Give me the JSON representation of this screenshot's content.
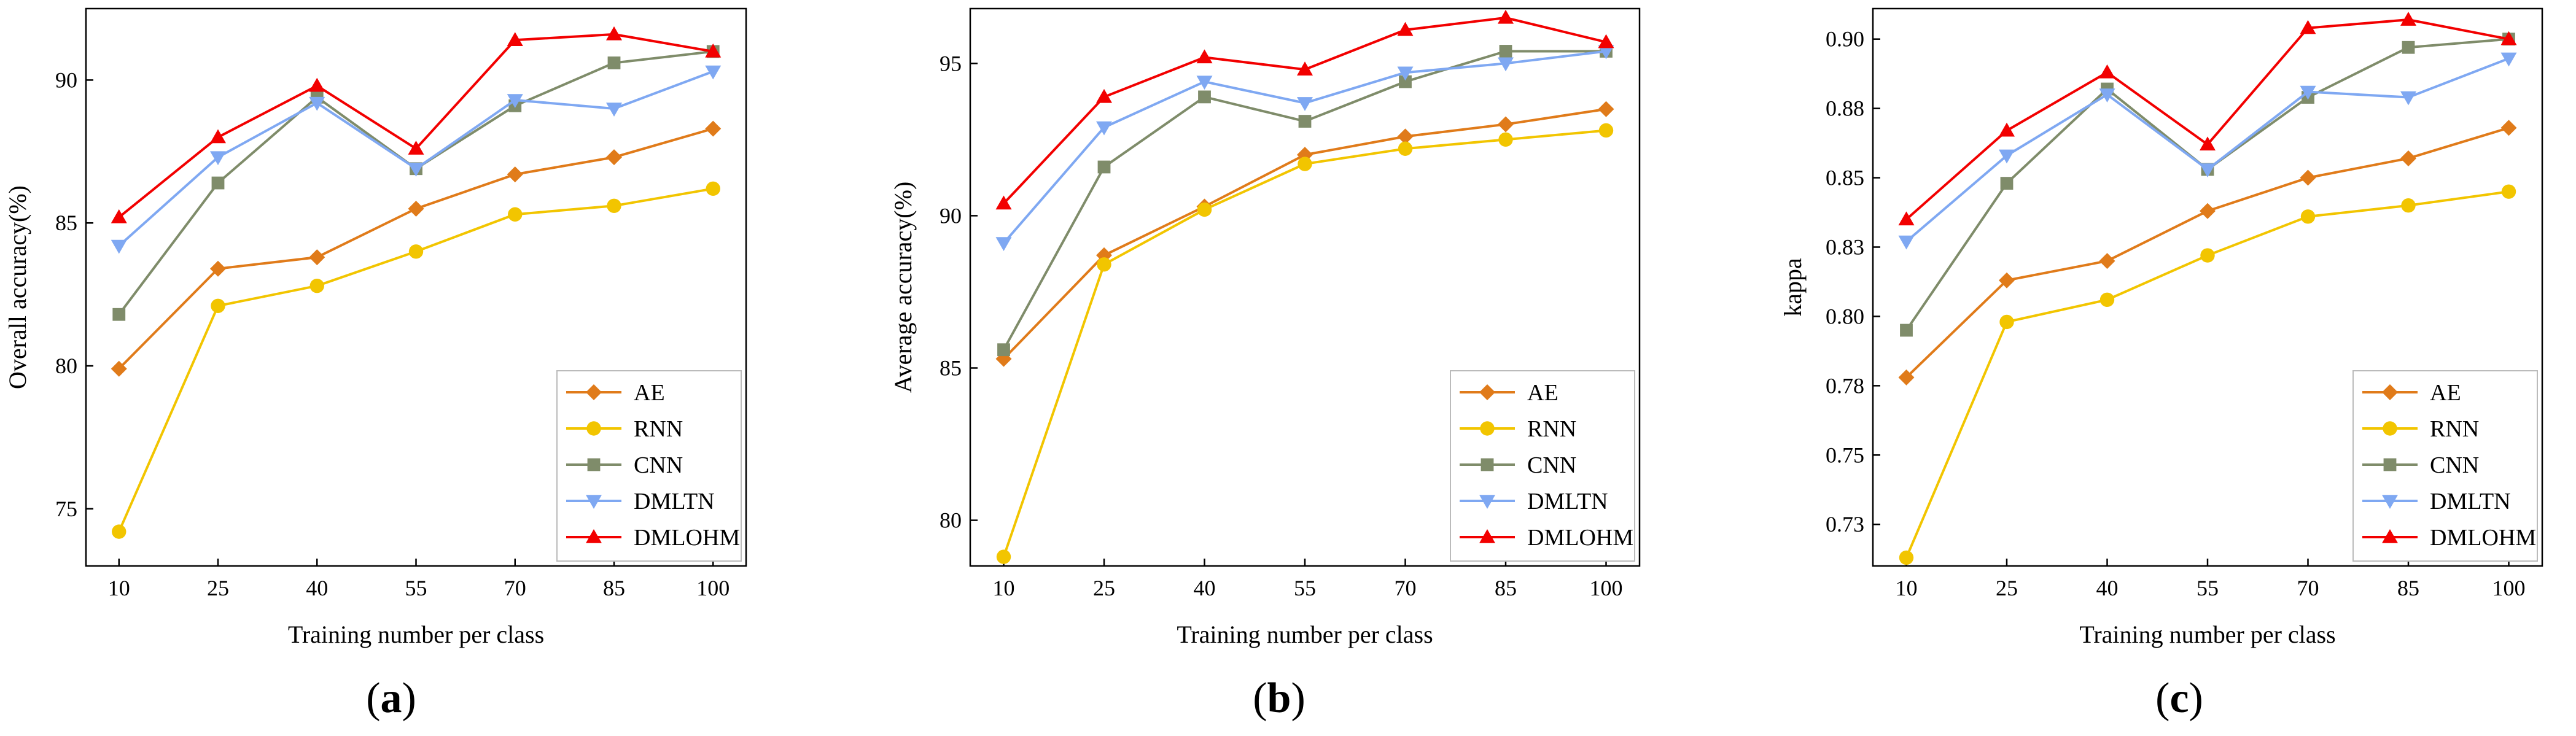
{
  "colors": {
    "AE": "#E07B1A",
    "RNN": "#F2C500",
    "CNN": "#7F8C6A",
    "DMLTN": "#7FA8F2",
    "DMLOHM": "#F20000"
  },
  "legend_markers": {
    "AE": "diamond",
    "RNN": "circle",
    "CNN": "square",
    "DMLTN": "triangle-down",
    "DMLOHM": "triangle-up"
  },
  "chart_data": [
    {
      "panel": "(a)",
      "panel_letter": "a",
      "type": "line",
      "xlabel": "Training number per class",
      "ylabel": "Overall accuracy(%)",
      "x": [
        10,
        25,
        40,
        55,
        70,
        85,
        100
      ],
      "x_tick_labels": [
        "10",
        "25",
        "40",
        "55",
        "70",
        "85",
        "100"
      ],
      "ylim": [
        73,
        92.5
      ],
      "yticks": [
        75,
        80,
        85,
        90
      ],
      "y_tick_labels": [
        "75",
        "80",
        "85",
        "90"
      ],
      "legend_position": "bottom-right",
      "series": [
        {
          "name": "AE",
          "values": [
            79.9,
            83.4,
            83.8,
            85.5,
            86.7,
            87.3,
            88.3
          ]
        },
        {
          "name": "RNN",
          "values": [
            74.2,
            82.1,
            82.8,
            84.0,
            85.3,
            85.6,
            86.2
          ]
        },
        {
          "name": "CNN",
          "values": [
            81.8,
            86.4,
            89.4,
            86.9,
            89.1,
            90.6,
            91.0
          ]
        },
        {
          "name": "DMLTN",
          "values": [
            84.2,
            87.3,
            89.2,
            86.9,
            89.3,
            89.0,
            90.3
          ]
        },
        {
          "name": "DMLOHM",
          "values": [
            85.2,
            88.0,
            89.8,
            87.6,
            91.4,
            91.6,
            91.0
          ]
        }
      ]
    },
    {
      "panel": "(b)",
      "panel_letter": "b",
      "type": "line",
      "xlabel": "Training number per class",
      "ylabel": "Average accuracy(%)",
      "x": [
        10,
        25,
        40,
        55,
        70,
        85,
        100
      ],
      "x_tick_labels": [
        "10",
        "25",
        "40",
        "55",
        "70",
        "85",
        "100"
      ],
      "ylim": [
        78.5,
        96.8
      ],
      "yticks": [
        80,
        85,
        90,
        95
      ],
      "y_tick_labels": [
        "80",
        "85",
        "90",
        "95"
      ],
      "legend_position": "bottom-right",
      "series": [
        {
          "name": "AE",
          "values": [
            85.3,
            88.7,
            90.3,
            92.0,
            92.6,
            93.0,
            93.5
          ]
        },
        {
          "name": "RNN",
          "values": [
            78.8,
            88.4,
            90.2,
            91.7,
            92.2,
            92.5,
            92.8
          ]
        },
        {
          "name": "CNN",
          "values": [
            85.6,
            91.6,
            93.9,
            93.1,
            94.4,
            95.4,
            95.4
          ]
        },
        {
          "name": "DMLTN",
          "values": [
            89.1,
            92.9,
            94.4,
            93.7,
            94.7,
            95.0,
            95.4
          ]
        },
        {
          "name": "DMLOHM",
          "values": [
            90.4,
            93.9,
            95.2,
            94.8,
            96.1,
            96.5,
            95.7
          ]
        }
      ]
    },
    {
      "panel": "(c)",
      "panel_letter": "c",
      "type": "line",
      "xlabel": "Training number per class",
      "ylabel": "kappa",
      "x": [
        10,
        25,
        40,
        55,
        70,
        85,
        100
      ],
      "x_tick_labels": [
        "10",
        "25",
        "40",
        "55",
        "70",
        "85",
        "100"
      ],
      "ylim": [
        0.71,
        0.911
      ],
      "yticks": [
        0.725,
        0.75,
        0.775,
        0.8,
        0.825,
        0.85,
        0.875,
        0.9
      ],
      "y_tick_labels": [
        "0.73",
        "0.75",
        "0.78",
        "0.80",
        "0.83",
        "0.85",
        "0.88",
        "0.90"
      ],
      "legend_position": "bottom-right",
      "series": [
        {
          "name": "AE",
          "values": [
            0.778,
            0.813,
            0.82,
            0.838,
            0.85,
            0.857,
            0.868
          ]
        },
        {
          "name": "RNN",
          "values": [
            0.713,
            0.798,
            0.806,
            0.822,
            0.836,
            0.84,
            0.845
          ]
        },
        {
          "name": "CNN",
          "values": [
            0.795,
            0.848,
            0.882,
            0.853,
            0.879,
            0.897,
            0.9
          ]
        },
        {
          "name": "DMLTN",
          "values": [
            0.827,
            0.858,
            0.88,
            0.853,
            0.881,
            0.879,
            0.893
          ]
        },
        {
          "name": "DMLOHM",
          "values": [
            0.835,
            0.867,
            0.888,
            0.862,
            0.904,
            0.907,
            0.9
          ]
        }
      ]
    }
  ]
}
